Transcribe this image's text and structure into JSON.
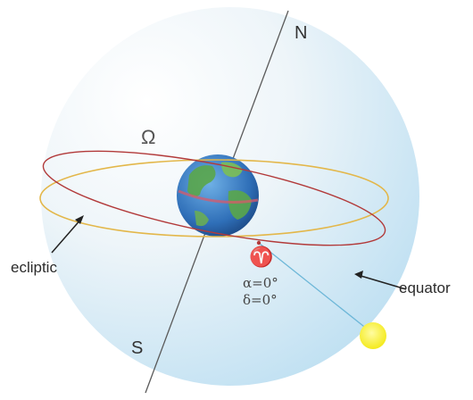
{
  "labels": {
    "north": "N",
    "south": "S",
    "node": "Ω",
    "vernal_equinox": "♈",
    "right_ascension": "α=0°",
    "declination": "δ=0°",
    "ecliptic": "ecliptic",
    "equator": "equator"
  },
  "icons": {
    "earth": "earth-globe-icon",
    "sun": "sun-icon"
  },
  "colors": {
    "sphere_light": "#f7fbfd",
    "sphere_shade": "#bfe0f2",
    "equator": "#b23a3a",
    "ecliptic": "#e3b74a",
    "axis": "#555555",
    "sun": "#f7ef2a",
    "sun_ray": "#6db7d8",
    "earth_ocean": "#2f6fb8",
    "earth_land": "#5aa64a"
  }
}
